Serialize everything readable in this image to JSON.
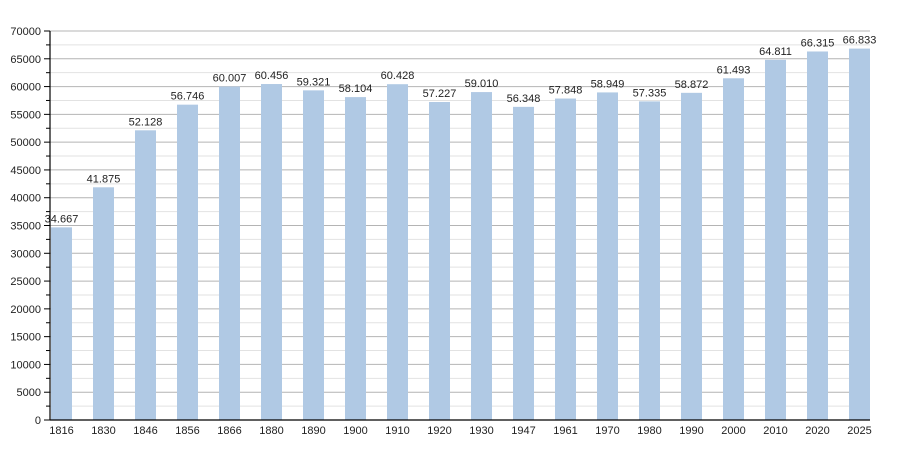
{
  "chart_data": {
    "type": "bar",
    "title": "",
    "xlabel": "",
    "ylabel": "",
    "categories": [
      "1816",
      "1830",
      "1846",
      "1856",
      "1866",
      "1880",
      "1890",
      "1900",
      "1910",
      "1920",
      "1930",
      "1947",
      "1961",
      "1970",
      "1980",
      "1990",
      "2000",
      "2010",
      "2020",
      "2025"
    ],
    "values": [
      34667,
      41875,
      52128,
      56746,
      60007,
      60456,
      59321,
      58104,
      60428,
      57227,
      59010,
      56348,
      57848,
      58949,
      57335,
      58872,
      61493,
      64811,
      66315,
      66833
    ],
    "ylim": [
      0,
      70000
    ],
    "yticks": [
      0,
      5000,
      10000,
      15000,
      20000,
      25000,
      30000,
      35000,
      40000,
      45000,
      50000,
      55000,
      60000,
      65000,
      70000
    ],
    "minor_grid_step": 2500,
    "grid": true,
    "data_labels": true,
    "thousands_separator": ".",
    "bar_color": "#b0c9e4",
    "major_grid_color": "#b4b4b4",
    "minor_grid_color": "#e2e2e2"
  }
}
